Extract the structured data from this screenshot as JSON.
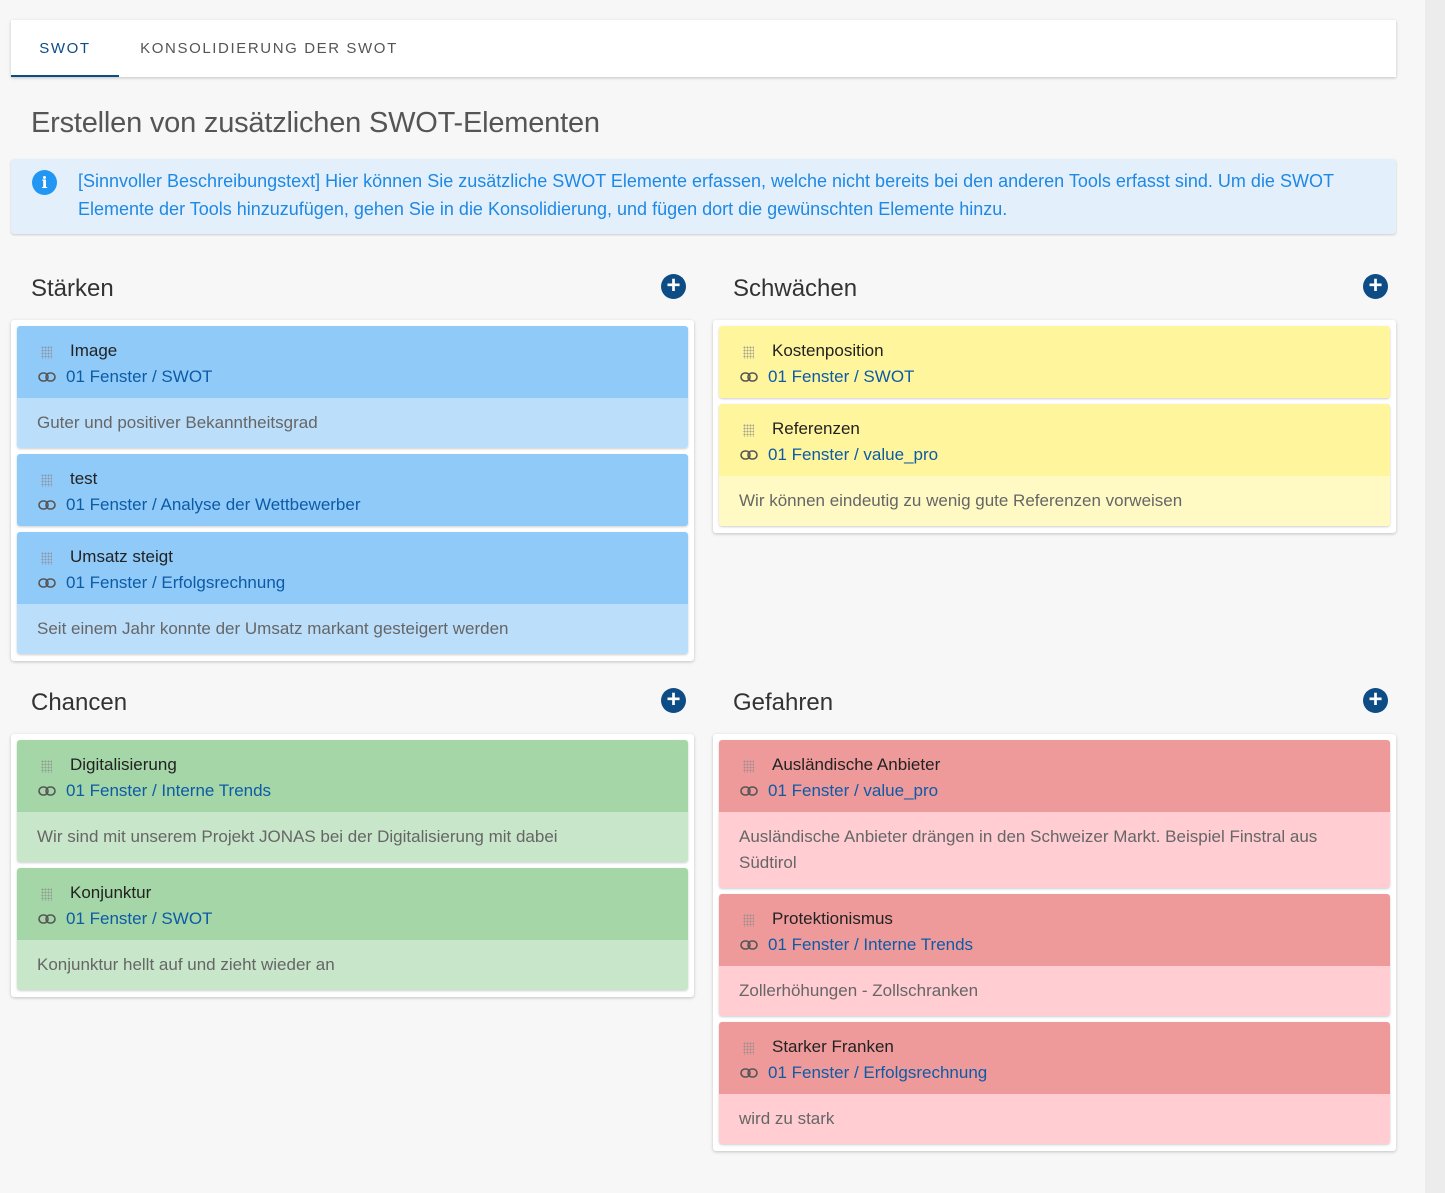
{
  "tabs": [
    {
      "label": "SWOT"
    },
    {
      "label": "KONSOLIDIERUNG DER SWOT"
    }
  ],
  "page_title": "Erstellen von zusätzlichen SWOT-Elementen",
  "info": {
    "icon": "info-icon",
    "text": "[Sinnvoller Beschreibungstext] Hier können Sie zusätzliche SWOT Elemente erfassen, welche nicht bereits bei den anderen Tools erfasst sind. Um die SWOT Elemente der Tools hinzuzufügen, gehen Sie in die Konsolidierung, und fügen dort die gewünschten Elemente hinzu."
  },
  "colors": {
    "accent": "#0d4c85",
    "strengths": "#90caf9",
    "weaknesses": "#fff59d",
    "opportunities": "#a5d6a7",
    "threats": "#ef9a9a"
  },
  "quadrants": {
    "strengths": {
      "title": "Stärken",
      "items": [
        {
          "title": "Image",
          "link": "01 Fenster / SWOT",
          "desc": "Guter und positiver Bekanntheitsgrad"
        },
        {
          "title": "test",
          "link": "01 Fenster / Analyse der Wettbewerber",
          "desc": ""
        },
        {
          "title": "Umsatz steigt",
          "link": "01 Fenster / Erfolgsrechnung",
          "desc": "Seit einem Jahr konnte der Umsatz markant gesteigert werden"
        }
      ]
    },
    "weaknesses": {
      "title": "Schwächen",
      "items": [
        {
          "title": "Kostenposition",
          "link": "01 Fenster / SWOT",
          "desc": ""
        },
        {
          "title": "Referenzen",
          "link": "01 Fenster / value_pro",
          "desc": "Wir können eindeutig zu wenig gute Referenzen vorweisen"
        }
      ]
    },
    "opportunities": {
      "title": "Chancen",
      "items": [
        {
          "title": "Digitalisierung",
          "link": "01 Fenster / Interne Trends",
          "desc": "Wir sind mit unserem Projekt JONAS bei der Digitalisierung mit dabei"
        },
        {
          "title": "Konjunktur",
          "link": "01 Fenster / SWOT",
          "desc": "Konjunktur hellt auf und zieht wieder an"
        }
      ]
    },
    "threats": {
      "title": "Gefahren",
      "items": [
        {
          "title": "Ausländische Anbieter",
          "link": "01 Fenster / value_pro",
          "desc": "Ausländische Anbieter drängen in den Schweizer Markt. Beispiel Finstral aus Südtirol"
        },
        {
          "title": "Protektionismus",
          "link": "01 Fenster / Interne Trends",
          "desc": "Zollerhöhungen - Zollschranken"
        },
        {
          "title": "Starker Franken",
          "link": "01 Fenster / Erfolgsrechnung",
          "desc": "wird zu stark"
        }
      ]
    }
  }
}
